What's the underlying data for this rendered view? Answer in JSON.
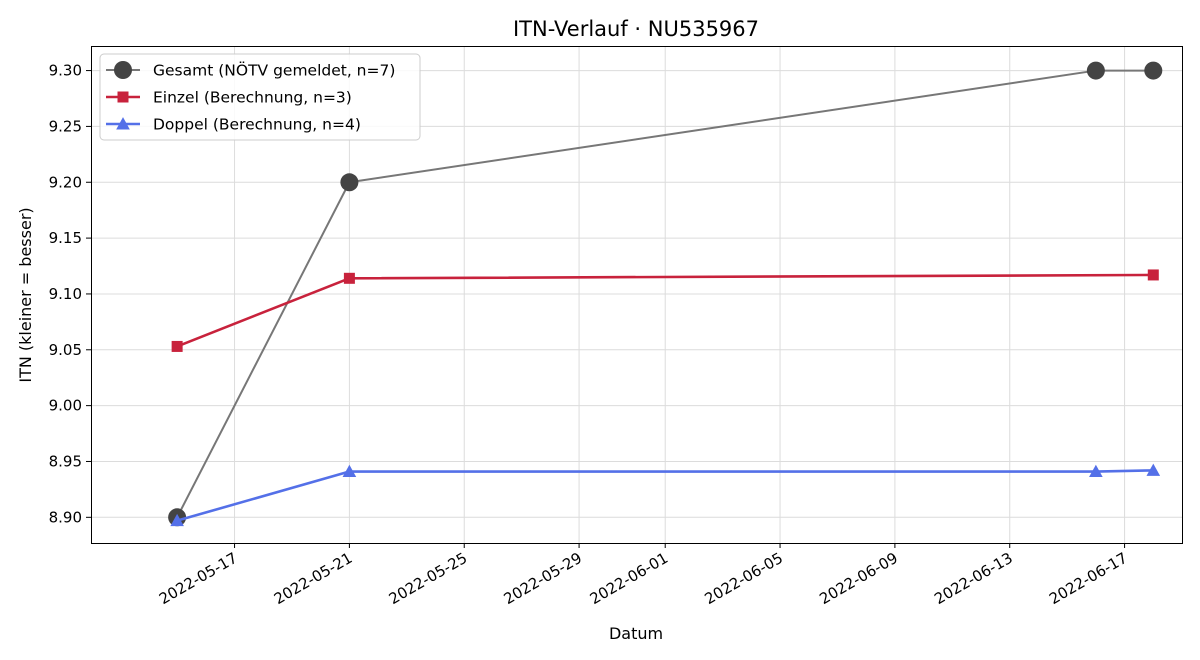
{
  "chart_data": {
    "type": "line",
    "title": "ITN-Verlauf · NU535967",
    "xlabel": "Datum",
    "ylabel": "ITN  (kleiner = besser)",
    "x_ticks": [
      "2022-05-17",
      "2022-05-21",
      "2022-05-25",
      "2022-05-29",
      "2022-06-01",
      "2022-06-05",
      "2022-06-09",
      "2022-06-13",
      "2022-06-17"
    ],
    "y_ticks": [
      "9.30",
      "9.25",
      "9.20",
      "9.15",
      "9.10",
      "9.05",
      "9.00",
      "8.95",
      "8.90"
    ],
    "xlim": [
      "2022-05-12",
      "2022-06-19"
    ],
    "ylim": [
      8.877,
      9.322
    ],
    "grid": true,
    "legend_position": "top-left",
    "series": [
      {
        "name": "Gesamt (NÖTV gemeldet, n=7)",
        "color": "#777777",
        "marker_color": "#444444",
        "marker": "circle",
        "points": [
          {
            "x": "2022-05-15",
            "y": 8.9
          },
          {
            "x": "2022-05-21",
            "y": 9.2
          },
          {
            "x": "2022-06-16",
            "y": 9.3
          },
          {
            "x": "2022-06-18",
            "y": 9.3
          }
        ]
      },
      {
        "name": "Einzel (Berechnung, n=3)",
        "color": "#c8223c",
        "marker_color": "#c8223c",
        "marker": "square",
        "points": [
          {
            "x": "2022-05-15",
            "y": 9.053
          },
          {
            "x": "2022-05-21",
            "y": 9.114
          },
          {
            "x": "2022-06-18",
            "y": 9.117
          }
        ]
      },
      {
        "name": "Doppel (Berechnung, n=4)",
        "color": "#5470e8",
        "marker_color": "#5470e8",
        "marker": "triangle",
        "points": [
          {
            "x": "2022-05-15",
            "y": 8.897
          },
          {
            "x": "2022-05-21",
            "y": 8.941
          },
          {
            "x": "2022-06-16",
            "y": 8.941
          },
          {
            "x": "2022-06-18",
            "y": 8.942
          }
        ]
      }
    ]
  }
}
